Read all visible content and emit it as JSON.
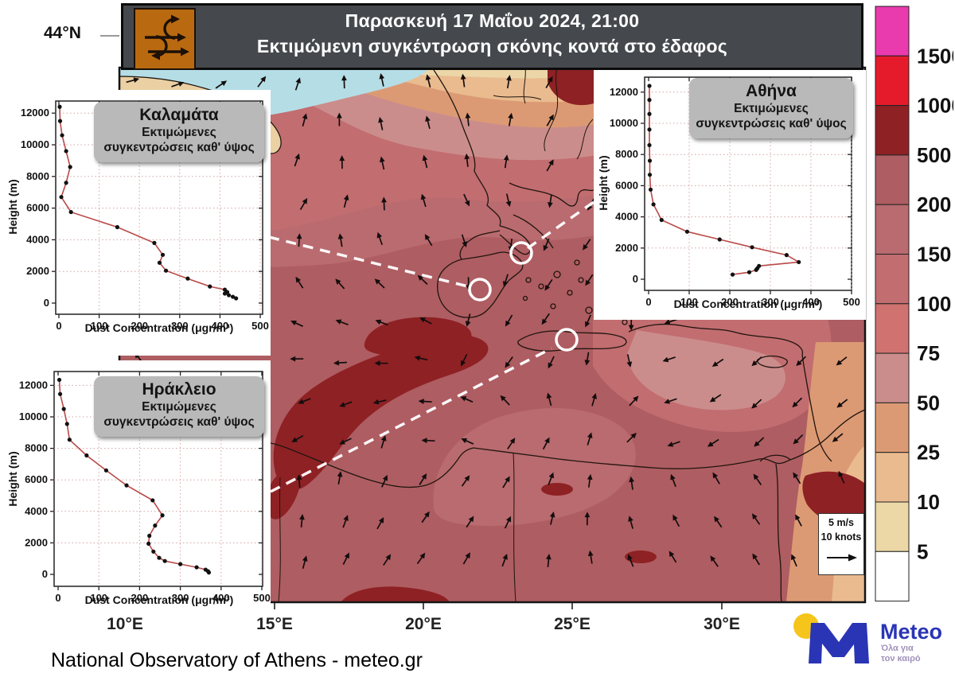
{
  "banner": {
    "title": "Παρασκευή 17 Μαΐου 2024, 21:00",
    "subtitle": "Εκτιμώμενη συγκέντρωση σκόνης κοντά στο έδαφος",
    "icon": "dust-cycle-icon"
  },
  "map": {
    "lat_label": "44°N",
    "lon_labels": [
      "10°E",
      "15°E",
      "20°E",
      "25°E",
      "30°E"
    ],
    "wind_legend": {
      "line1": "5 m/s",
      "line2": "10 knots"
    },
    "markers": [
      "Αθήνα",
      "Καλαμάτα",
      "Ηράκλειο"
    ],
    "sea_color": "#b5dde6",
    "land_color": "#ead0a2"
  },
  "colorbar": {
    "unit_labels": [
      "1500",
      "1000",
      "500",
      "200",
      "150",
      "100",
      "75",
      "50",
      "25",
      "10",
      "5"
    ],
    "colors": [
      "#e93aae",
      "#e51b2c",
      "#8e2124",
      "#ae5d62",
      "#b96b6f",
      "#c26d70",
      "#d0726f",
      "#cb8d8b",
      "#dc9a74",
      "#e9bb8f",
      "#ebd8a6",
      "#ffffff"
    ]
  },
  "chart_data": [
    {
      "type": "line",
      "id": "kalamata",
      "title": "Καλαμάτα",
      "subtitle1": "Εκτιμώμενες",
      "subtitle2": "συγκεντρώσεις  καθ' ύψος",
      "xlabel": "Dust Concentration (μgr/m³)",
      "ylabel": "Height (m)",
      "xlim": [
        0,
        500
      ],
      "ylim": [
        0,
        13000
      ],
      "grid": true,
      "xticks": [
        0,
        100,
        200,
        300,
        400,
        500
      ],
      "yticks": [
        0,
        2000,
        4000,
        6000,
        8000,
        10000,
        12000
      ],
      "height_m": [
        12400,
        11500,
        10600,
        9600,
        8600,
        7600,
        6700,
        5750,
        4800,
        3800,
        3050,
        2550,
        2050,
        1550,
        1050,
        850,
        700,
        600,
        500,
        400,
        300
      ],
      "conc": [
        2,
        3,
        8,
        18,
        28,
        18,
        6,
        30,
        145,
        237,
        258,
        250,
        266,
        320,
        375,
        412,
        418,
        412,
        422,
        432,
        440
      ],
      "line_color": "#b94a48",
      "dot_color": "#111111"
    },
    {
      "type": "line",
      "id": "athina",
      "title": "Αθήνα",
      "subtitle1": "Εκτιμώμενες",
      "subtitle2": "συγκεντρώσεις  καθ' ύψος",
      "xlabel": "Dust Concentration (μgr/m³)",
      "ylabel": "Height (m)",
      "xlim": [
        0,
        500
      ],
      "ylim": [
        0,
        13000
      ],
      "grid": true,
      "xticks": [
        0,
        100,
        200,
        300,
        400,
        500
      ],
      "yticks": [
        0,
        2000,
        4000,
        6000,
        8000,
        10000,
        12000
      ],
      "height_m": [
        12400,
        11500,
        10600,
        9600,
        8600,
        7600,
        6700,
        5750,
        4800,
        3800,
        3050,
        2550,
        2050,
        1550,
        1100,
        850,
        700,
        600,
        450,
        300
      ],
      "conc": [
        2,
        2,
        2,
        2,
        2,
        3,
        3,
        5,
        12,
        32,
        95,
        175,
        255,
        340,
        370,
        272,
        268,
        265,
        248,
        207
      ],
      "line_color": "#b94a48",
      "dot_color": "#111111"
    },
    {
      "type": "line",
      "id": "irakleio",
      "title": "Ηράκλειο",
      "subtitle1": "Εκτιμώμενες",
      "subtitle2": "συγκεντρώσεις  καθ' ύψος",
      "xlabel": "Dust Concentration (μgr/m³)",
      "ylabel": "Height (m)",
      "xlim": [
        0,
        500
      ],
      "ylim": [
        0,
        13000
      ],
      "grid": true,
      "xticks": [
        0,
        100,
        200,
        300,
        400,
        500
      ],
      "yticks": [
        0,
        2000,
        4000,
        6000,
        8000,
        10000,
        12000
      ],
      "height_m": [
        12350,
        11450,
        10500,
        9550,
        8550,
        7550,
        6600,
        5650,
        4700,
        3750,
        3100,
        2450,
        1950,
        1450,
        1050,
        850,
        650,
        450,
        300,
        200,
        120
      ],
      "conc": [
        3,
        5,
        14,
        22,
        28,
        70,
        118,
        168,
        232,
        256,
        238,
        224,
        222,
        234,
        248,
        262,
        300,
        340,
        362,
        368,
        370
      ],
      "line_color": "#b94a48",
      "dot_color": "#111111"
    }
  ],
  "footer": {
    "attribution": "National Observatory of Athens - meteo.gr",
    "logo": {
      "brand": "Meteo",
      "tagline1": "Όλα για",
      "tagline2": "τον καιρό"
    }
  }
}
